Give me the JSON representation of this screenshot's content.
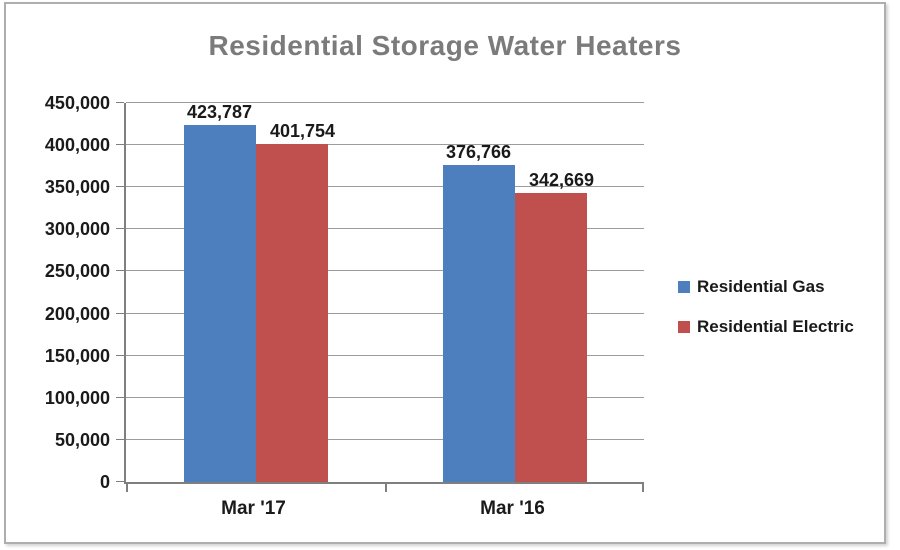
{
  "window": {
    "background": "#ffffff",
    "frame_border_color": "#aeaeae"
  },
  "chart_data": {
    "type": "bar",
    "title": "Residential Storage Water Heaters",
    "title_color": "#7b7b7b",
    "categories": [
      "Mar '17",
      "Mar '16"
    ],
    "series": [
      {
        "name": "Residential Gas",
        "color": "#4D7EBD",
        "values": [
          423787,
          376766
        ],
        "data_labels": [
          "423,787",
          "376,766"
        ]
      },
      {
        "name": "Residential Electric",
        "color": "#C0504D",
        "values": [
          401754,
          342669
        ],
        "data_labels": [
          "401,754",
          "342,669"
        ]
      }
    ],
    "ylim": [
      0,
      450000
    ],
    "y_step": 50000,
    "y_tick_labels": [
      "0",
      "50,000",
      "100,000",
      "150,000",
      "200,000",
      "250,000",
      "300,000",
      "350,000",
      "400,000",
      "450,000"
    ],
    "grid": true,
    "grid_color": "#9c9c9c",
    "axis_color": "#7f7f7f",
    "text_color": "#1a1a1a",
    "legend_position": "right"
  }
}
